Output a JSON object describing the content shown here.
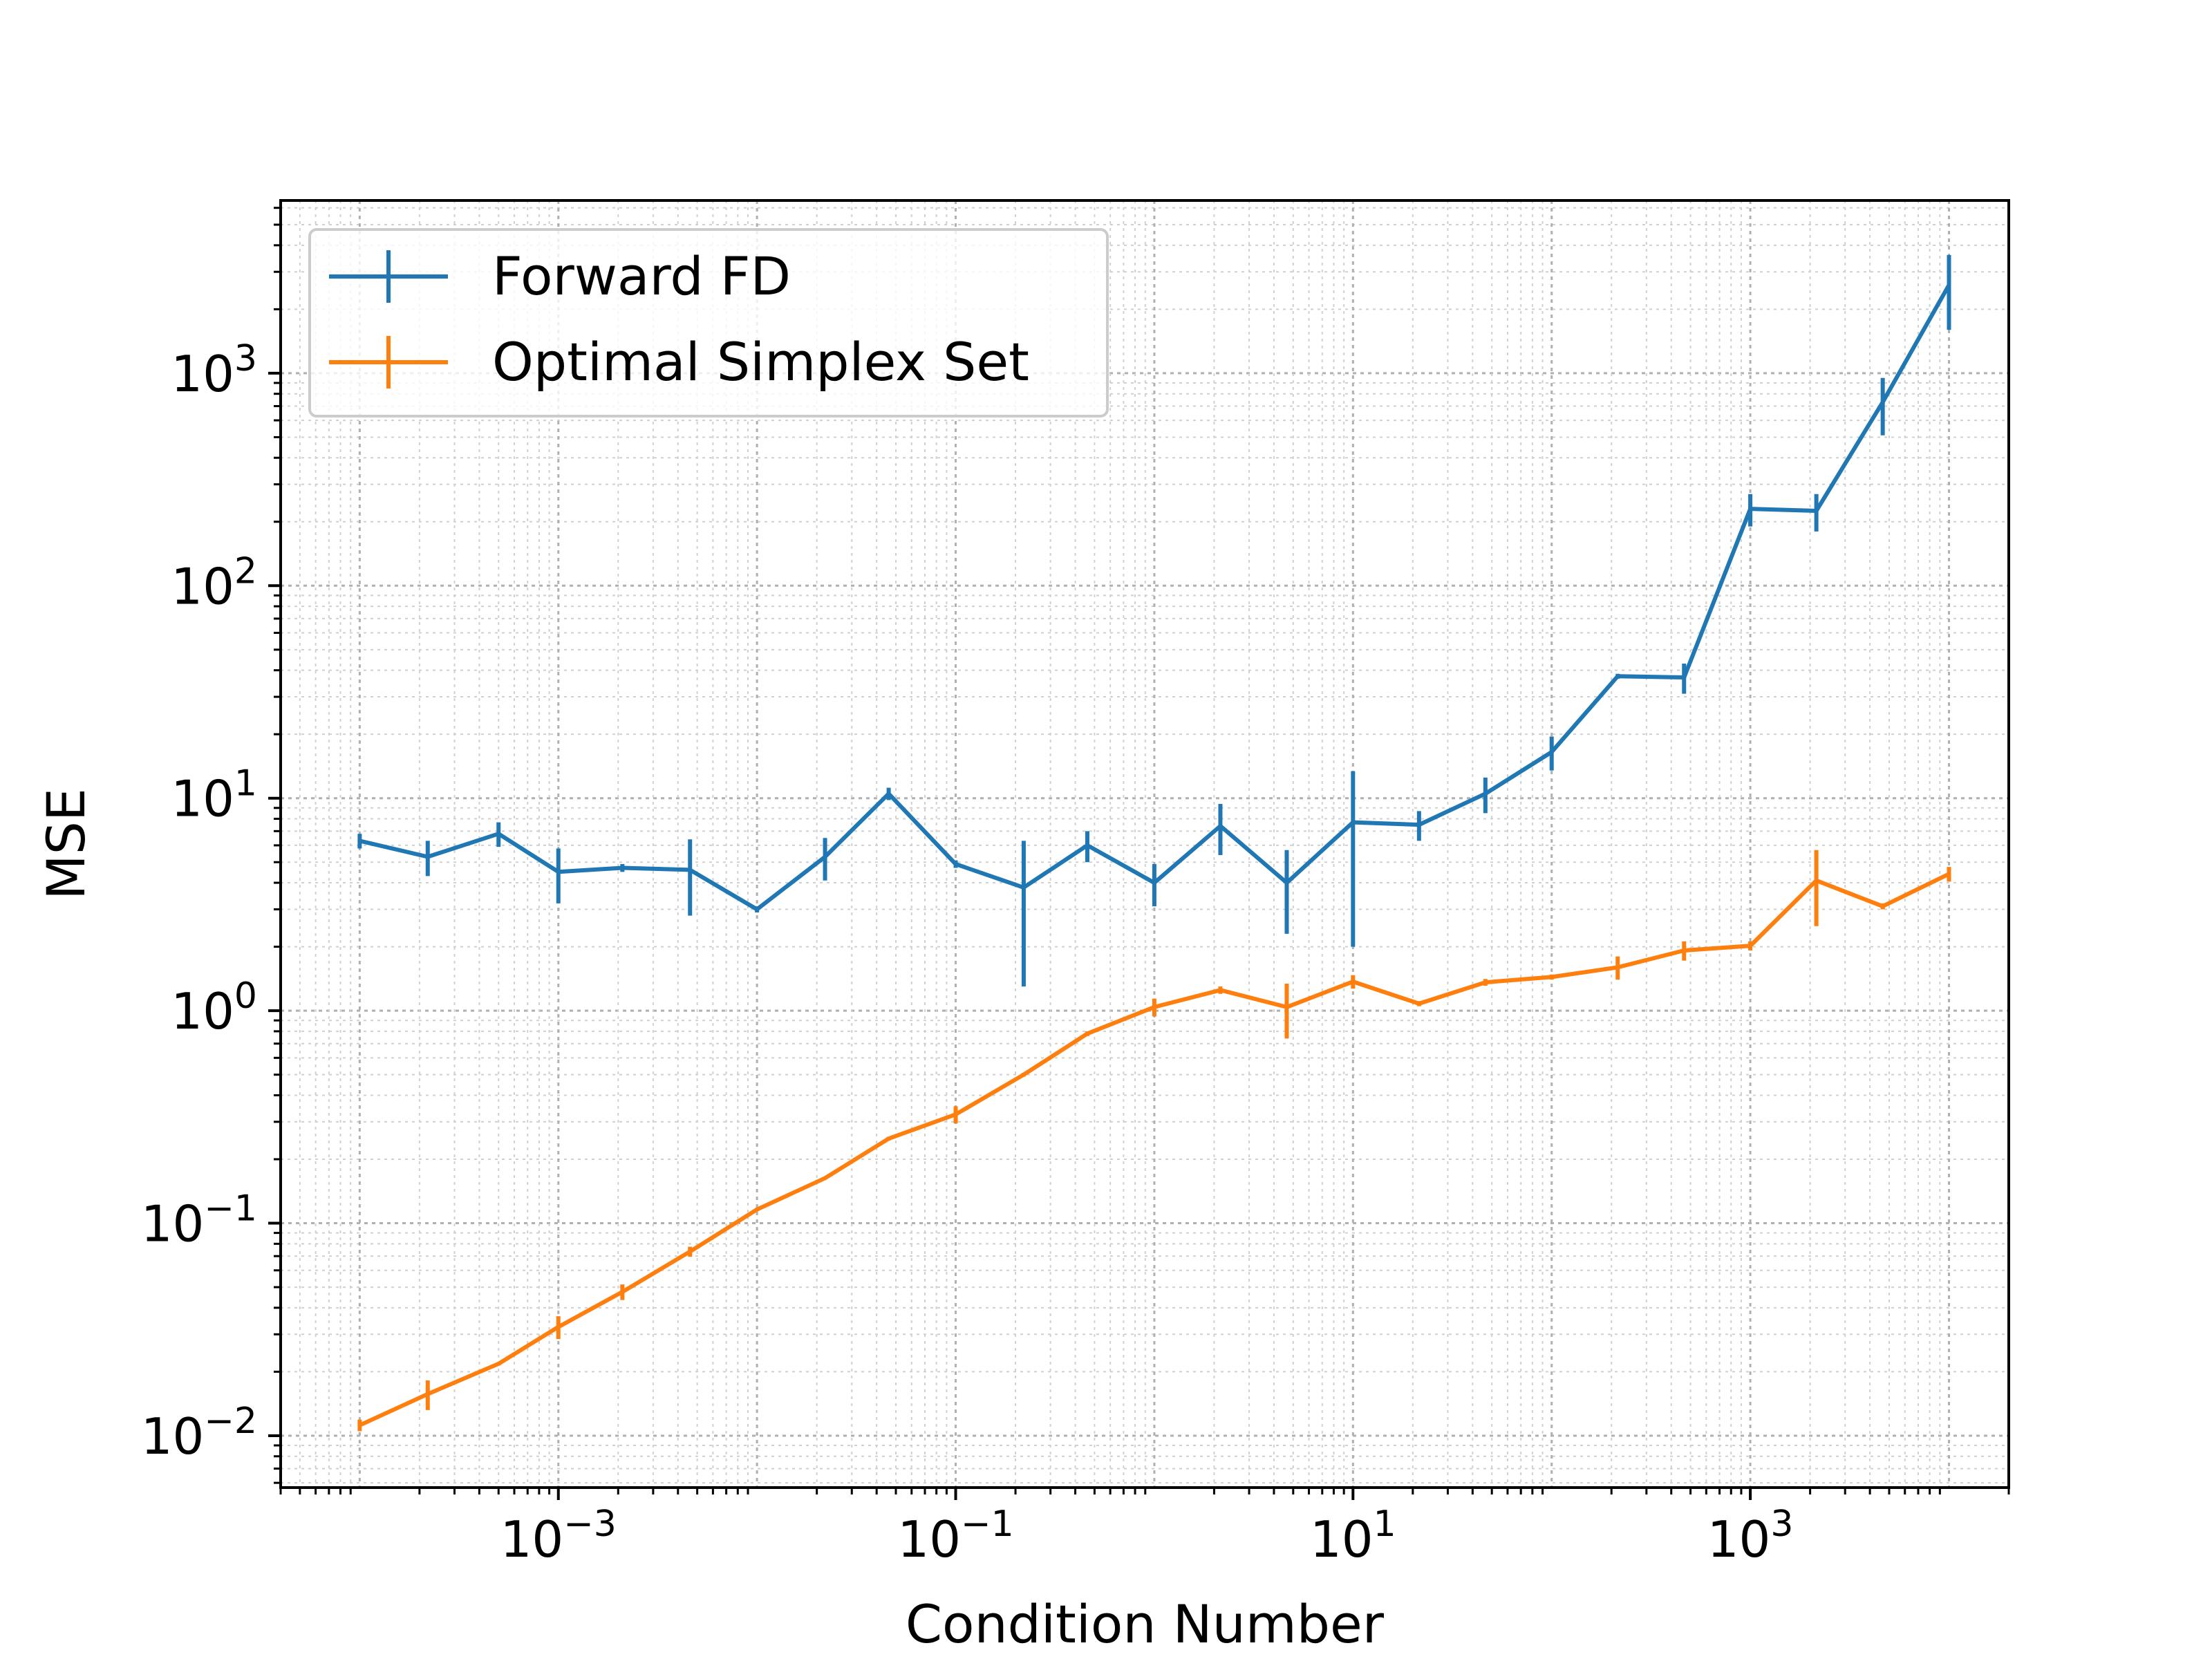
{
  "chart_data": {
    "type": "line",
    "title": "",
    "xlabel": "Condition Number",
    "ylabel": "MSE",
    "xscale": "log",
    "yscale": "log",
    "xlim": [
      4e-05,
      20000
    ],
    "ylim": [
      0.0057,
      6500
    ],
    "grid": true,
    "legend_position": "top-left",
    "x_ticks": [
      {
        "value": 0.001,
        "base": "10",
        "exp": "−3"
      },
      {
        "value": 0.1,
        "base": "10",
        "exp": "−1"
      },
      {
        "value": 10,
        "base": "10",
        "exp": "1"
      },
      {
        "value": 1000,
        "base": "10",
        "exp": "3"
      }
    ],
    "y_ticks": [
      {
        "value": 0.01,
        "base": "10",
        "exp": "−2"
      },
      {
        "value": 0.1,
        "base": "10",
        "exp": "−1"
      },
      {
        "value": 1,
        "base": "10",
        "exp": "0"
      },
      {
        "value": 10,
        "base": "10",
        "exp": "1"
      },
      {
        "value": 100,
        "base": "10",
        "exp": "2"
      },
      {
        "value": 1000,
        "base": "10",
        "exp": "3"
      }
    ],
    "x": [
      0.0001,
      0.00022,
      0.0005,
      0.001,
      0.0021,
      0.0046,
      0.01,
      0.022,
      0.046,
      0.1,
      0.22,
      0.46,
      1,
      2.15,
      4.64,
      10,
      21.5,
      46.4,
      100,
      215,
      464,
      1000,
      2150,
      4640,
      10000
    ],
    "series": [
      {
        "name": "Forward FD",
        "color": "#1f77b4",
        "values": [
          6.3,
          5.3,
          6.8,
          4.5,
          4.7,
          4.6,
          3.0,
          5.3,
          10.5,
          4.9,
          3.8,
          6.0,
          4.0,
          7.4,
          4.0,
          7.7,
          7.5,
          10.5,
          16.5,
          37.5,
          37.0,
          230,
          225,
          730,
          2600
        ],
        "errors": [
          0.5,
          1.0,
          0.9,
          1.3,
          0.2,
          1.8,
          0.1,
          1.2,
          0.7,
          0.2,
          2.5,
          1.0,
          0.9,
          2.0,
          1.7,
          5.7,
          1.2,
          2.0,
          3.0,
          1.0,
          6.0,
          40,
          45,
          220,
          1000
        ]
      },
      {
        "name": "Optimal Simplex Set",
        "color": "#ff7f0e",
        "values": [
          0.0112,
          0.0157,
          0.0218,
          0.0325,
          0.0475,
          0.0735,
          0.116,
          0.163,
          0.25,
          0.325,
          0.5,
          0.78,
          1.04,
          1.25,
          1.04,
          1.37,
          1.08,
          1.36,
          1.44,
          1.6,
          1.92,
          2.02,
          4.1,
          3.1,
          4.4
        ],
        "errors": [
          0.0007,
          0.0025,
          0.0004,
          0.004,
          0.004,
          0.004,
          0.002,
          0.002,
          0.005,
          0.03,
          0.01,
          0.02,
          0.1,
          0.05,
          0.3,
          0.1,
          0.03,
          0.05,
          0.04,
          0.2,
          0.2,
          0.1,
          1.6,
          0.1,
          0.35
        ]
      }
    ]
  }
}
